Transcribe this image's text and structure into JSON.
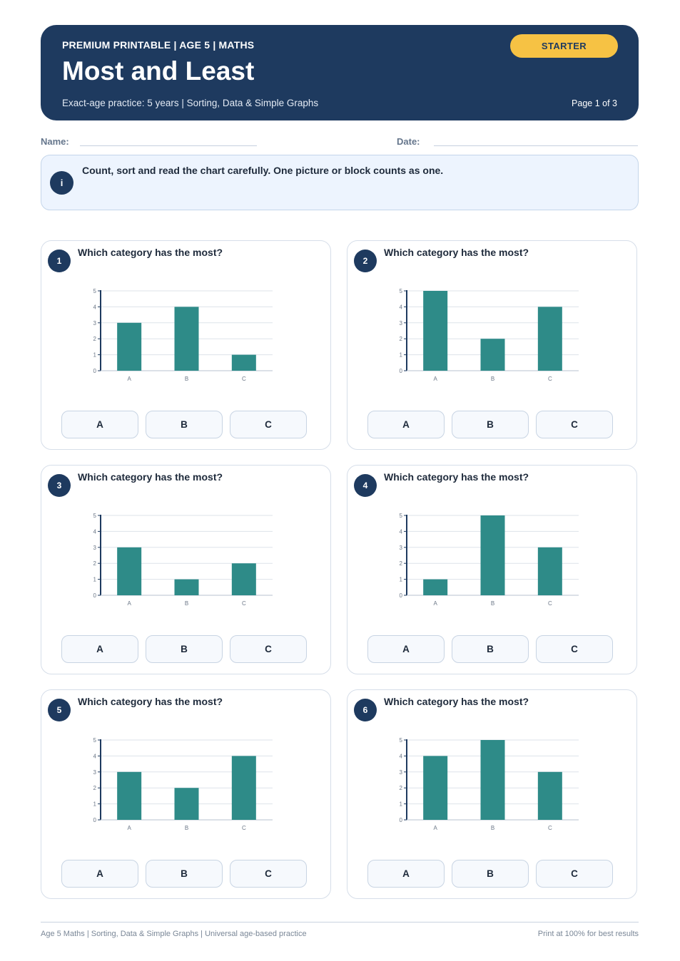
{
  "header": {
    "eyebrow": "PREMIUM PRINTABLE | AGE 5 | MATHS",
    "title": "Most and Least",
    "subtitle": "Exact-age practice: 5 years | Sorting, Data & Simple Graphs",
    "badge": "STARTER",
    "page": "Page 1 of 3"
  },
  "form": {
    "name_label": "Name:",
    "date_label": "Date:"
  },
  "info": {
    "icon": "i",
    "text": "Count, sort and read the chart carefully. One picture or block counts as one."
  },
  "colors": {
    "header_bg": "#1e3a5f",
    "badge": "#f6c244",
    "bar": "#2e8b88"
  },
  "questions": [
    {
      "number": "1",
      "text": "Which category has the most?",
      "options": [
        "A",
        "B",
        "C"
      ]
    },
    {
      "number": "2",
      "text": "Which category has the most?",
      "options": [
        "A",
        "B",
        "C"
      ]
    },
    {
      "number": "3",
      "text": "Which category has the most?",
      "options": [
        "A",
        "B",
        "C"
      ]
    },
    {
      "number": "4",
      "text": "Which category has the most?",
      "options": [
        "A",
        "B",
        "C"
      ]
    },
    {
      "number": "5",
      "text": "Which category has the most?",
      "options": [
        "A",
        "B",
        "C"
      ]
    },
    {
      "number": "6",
      "text": "Which category has the most?",
      "options": [
        "A",
        "B",
        "C"
      ]
    }
  ],
  "chart_data": [
    {
      "type": "bar",
      "categories": [
        "A",
        "B",
        "C"
      ],
      "values": [
        3,
        4,
        1
      ],
      "ylim": [
        0,
        5
      ],
      "yticks": [
        "0",
        "1",
        "2",
        "3",
        "4",
        "5"
      ],
      "grid": true
    },
    {
      "type": "bar",
      "categories": [
        "A",
        "B",
        "C"
      ],
      "values": [
        5,
        2,
        4
      ],
      "ylim": [
        0,
        5
      ],
      "yticks": [
        "0",
        "1",
        "2",
        "3",
        "4",
        "5"
      ],
      "grid": true
    },
    {
      "type": "bar",
      "categories": [
        "A",
        "B",
        "C"
      ],
      "values": [
        3,
        1,
        2
      ],
      "ylim": [
        0,
        5
      ],
      "yticks": [
        "0",
        "1",
        "2",
        "3",
        "4",
        "5"
      ],
      "grid": true
    },
    {
      "type": "bar",
      "categories": [
        "A",
        "B",
        "C"
      ],
      "values": [
        1,
        5,
        3
      ],
      "ylim": [
        0,
        5
      ],
      "yticks": [
        "0",
        "1",
        "2",
        "3",
        "4",
        "5"
      ],
      "grid": true
    },
    {
      "type": "bar",
      "categories": [
        "A",
        "B",
        "C"
      ],
      "values": [
        3,
        2,
        4
      ],
      "ylim": [
        0,
        5
      ],
      "yticks": [
        "0",
        "1",
        "2",
        "3",
        "4",
        "5"
      ],
      "grid": true
    },
    {
      "type": "bar",
      "categories": [
        "A",
        "B",
        "C"
      ],
      "values": [
        4,
        5,
        3
      ],
      "ylim": [
        0,
        5
      ],
      "yticks": [
        "0",
        "1",
        "2",
        "3",
        "4",
        "5"
      ],
      "grid": true
    }
  ],
  "footer": {
    "left": "Age 5 Maths | Sorting, Data & Simple Graphs | Universal age-based practice",
    "right": "Print at 100% for best results"
  }
}
